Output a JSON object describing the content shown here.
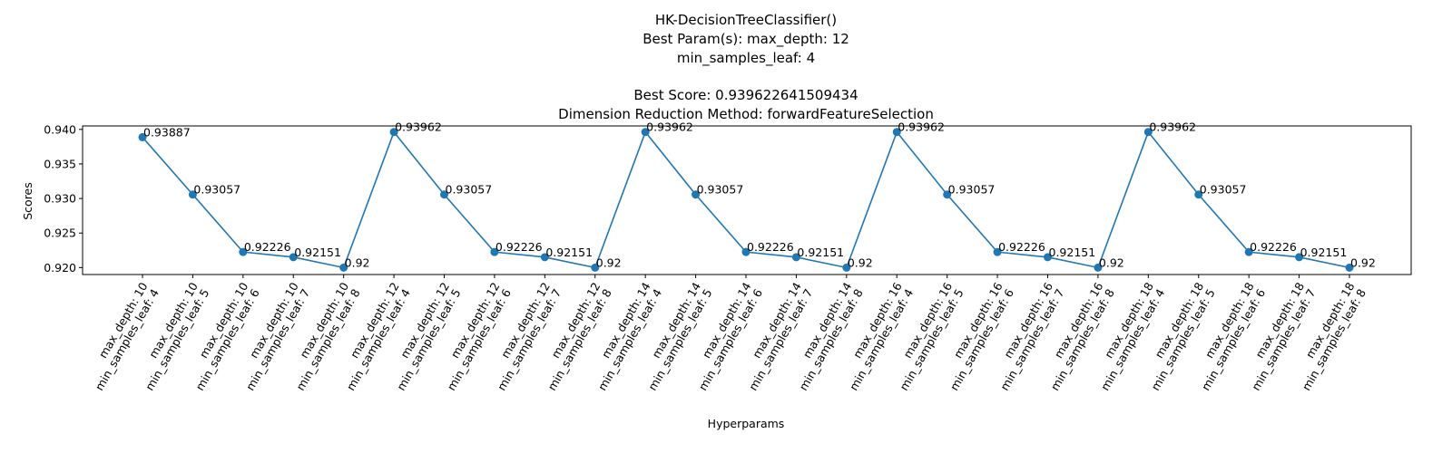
{
  "chart_data": {
    "type": "line",
    "title_lines": [
      "HK-DecisionTreeClassifier()",
      "Best Param(s): max_depth: 12",
      "min_samples_leaf: 4",
      "",
      "Best Score: 0.939622641509434",
      "Dimension Reduction Method: forwardFeatureSelection"
    ],
    "xlabel": "Hyperparams",
    "ylabel": "Scores",
    "ylim": [
      0.919,
      0.9405
    ],
    "yticks": [
      "0.920",
      "0.925",
      "0.930",
      "0.935",
      "0.940"
    ],
    "grid": false,
    "color": "#1f77b4",
    "categories": [
      [
        "max_depth: 10",
        "min_samples_leaf: 4"
      ],
      [
        "max_depth: 10",
        "min_samples_leaf: 5"
      ],
      [
        "max_depth: 10",
        "min_samples_leaf: 6"
      ],
      [
        "max_depth: 10",
        "min_samples_leaf: 7"
      ],
      [
        "max_depth: 10",
        "min_samples_leaf: 8"
      ],
      [
        "max_depth: 12",
        "min_samples_leaf: 4"
      ],
      [
        "max_depth: 12",
        "min_samples_leaf: 5"
      ],
      [
        "max_depth: 12",
        "min_samples_leaf: 6"
      ],
      [
        "max_depth: 12",
        "min_samples_leaf: 7"
      ],
      [
        "max_depth: 12",
        "min_samples_leaf: 8"
      ],
      [
        "max_depth: 14",
        "min_samples_leaf: 4"
      ],
      [
        "max_depth: 14",
        "min_samples_leaf: 5"
      ],
      [
        "max_depth: 14",
        "min_samples_leaf: 6"
      ],
      [
        "max_depth: 14",
        "min_samples_leaf: 7"
      ],
      [
        "max_depth: 14",
        "min_samples_leaf: 8"
      ],
      [
        "max_depth: 16",
        "min_samples_leaf: 4"
      ],
      [
        "max_depth: 16",
        "min_samples_leaf: 5"
      ],
      [
        "max_depth: 16",
        "min_samples_leaf: 6"
      ],
      [
        "max_depth: 16",
        "min_samples_leaf: 7"
      ],
      [
        "max_depth: 16",
        "min_samples_leaf: 8"
      ],
      [
        "max_depth: 18",
        "min_samples_leaf: 4"
      ],
      [
        "max_depth: 18",
        "min_samples_leaf: 5"
      ],
      [
        "max_depth: 18",
        "min_samples_leaf: 6"
      ],
      [
        "max_depth: 18",
        "min_samples_leaf: 7"
      ],
      [
        "max_depth: 18",
        "min_samples_leaf: 8"
      ]
    ],
    "values": [
      0.93887,
      0.93057,
      0.92226,
      0.92151,
      0.92,
      0.93962,
      0.93057,
      0.92226,
      0.92151,
      0.92,
      0.93962,
      0.93057,
      0.92226,
      0.92151,
      0.92,
      0.93962,
      0.93057,
      0.92226,
      0.92151,
      0.92,
      0.93962,
      0.93057,
      0.92226,
      0.92151,
      0.92
    ],
    "data_labels": [
      "0.93887",
      "0.93057",
      "0.92226",
      "0.92151",
      "0.92",
      "0.93962",
      "0.93057",
      "0.92226",
      "0.92151",
      "0.92",
      "0.93962",
      "0.93057",
      "0.92226",
      "0.92151",
      "0.92",
      "0.93962",
      "0.93057",
      "0.92226",
      "0.92151",
      "0.92",
      "0.93962",
      "0.93057",
      "0.92226",
      "0.92151",
      "0.92"
    ]
  }
}
